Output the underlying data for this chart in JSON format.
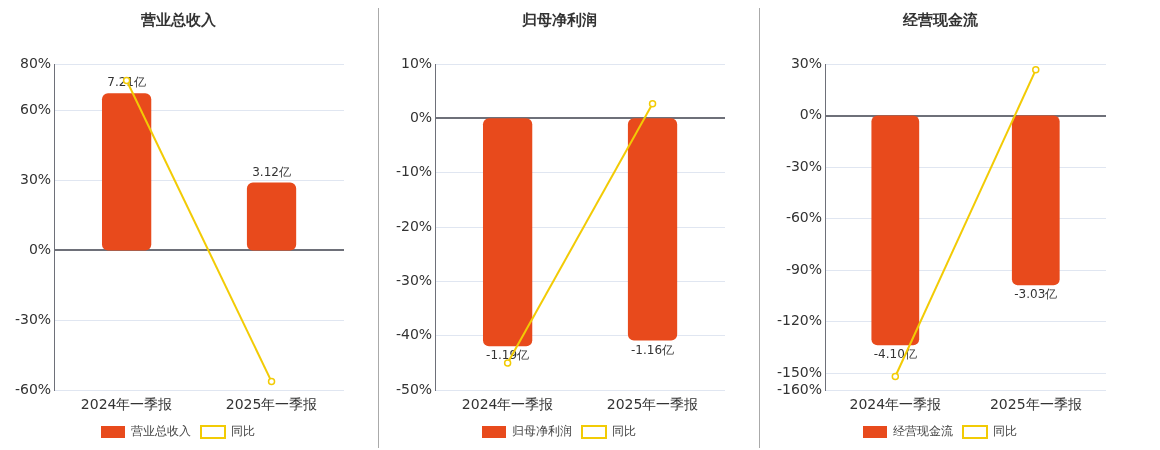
{
  "chart_data": [
    {
      "type": "bar",
      "title": "营业总收入",
      "categories": [
        "2024年一季报",
        "2025年一季报"
      ],
      "series": [
        {
          "name": "营业总收入",
          "axis": "y2",
          "color": "#e84a1c",
          "values": [
            7.21,
            3.12
          ],
          "value_labels": [
            "7.21亿",
            "3.12亿"
          ]
        },
        {
          "name": "同比",
          "type": "line",
          "color": "#f2cb05",
          "values": [
            72.9,
            -56.3
          ]
        }
      ],
      "ylim": [
        -60,
        80
      ],
      "yticks": [
        {
          "value": 80,
          "label": "80%"
        },
        {
          "value": 60,
          "label": "60%"
        },
        {
          "value": 30,
          "label": "30%"
        },
        {
          "value": 0,
          "label": "0%"
        },
        {
          "value": -30,
          "label": "-30%"
        },
        {
          "value": -60,
          "label": "-60%"
        }
      ],
      "y2lim": [
        -6.41,
        8.55
      ],
      "grid": "y",
      "legend": "bottom",
      "marker": "circle"
    },
    {
      "type": "bar",
      "title": "归母净利润",
      "categories": [
        "2024年一季报",
        "2025年一季报"
      ],
      "series": [
        {
          "name": "归母净利润",
          "axis": "y2",
          "color": "#e84a1c",
          "values": [
            -1.19,
            -1.16
          ],
          "value_labels": [
            "-1.19亿",
            "-1.16亿"
          ]
        },
        {
          "name": "同比",
          "type": "line",
          "color": "#f2cb05",
          "values": [
            -45.0,
            2.7
          ]
        }
      ],
      "ylim": [
        -50,
        10
      ],
      "yticks": [
        {
          "value": 10,
          "label": "10%"
        },
        {
          "value": 0,
          "label": "0%"
        },
        {
          "value": -10,
          "label": "-10%"
        },
        {
          "value": -20,
          "label": "-20%"
        },
        {
          "value": -30,
          "label": "-30%"
        },
        {
          "value": -40,
          "label": "-40%"
        },
        {
          "value": -50,
          "label": "-50%"
        }
      ],
      "y2lim": [
        -1.42,
        0.284
      ],
      "grid": "y",
      "legend": "bottom",
      "marker": "circle"
    },
    {
      "type": "bar",
      "title": "经营现金流",
      "categories": [
        "2024年一季报",
        "2025年一季报"
      ],
      "series": [
        {
          "name": "经营现金流",
          "axis": "y2",
          "color": "#e84a1c",
          "values": [
            -4.1,
            -3.03
          ],
          "value_labels": [
            "-4.10亿",
            "-3.03亿"
          ]
        },
        {
          "name": "同比",
          "type": "line",
          "color": "#f2cb05",
          "values": [
            -152,
            26.6
          ]
        }
      ],
      "ylim": [
        -160,
        30
      ],
      "yticks": [
        {
          "value": 30,
          "label": "30%"
        },
        {
          "value": 0,
          "label": "0%"
        },
        {
          "value": -30,
          "label": "-30%"
        },
        {
          "value": -60,
          "label": "-60%"
        },
        {
          "value": -90,
          "label": "-90%"
        },
        {
          "value": -120,
          "label": "-120%"
        },
        {
          "value": -150,
          "label": "-150%"
        },
        {
          "value": -160,
          "label": "-160%"
        }
      ],
      "y2lim": [
        -4.9,
        0.918
      ],
      "grid": "y",
      "legend": "bottom",
      "marker": "circle"
    }
  ]
}
